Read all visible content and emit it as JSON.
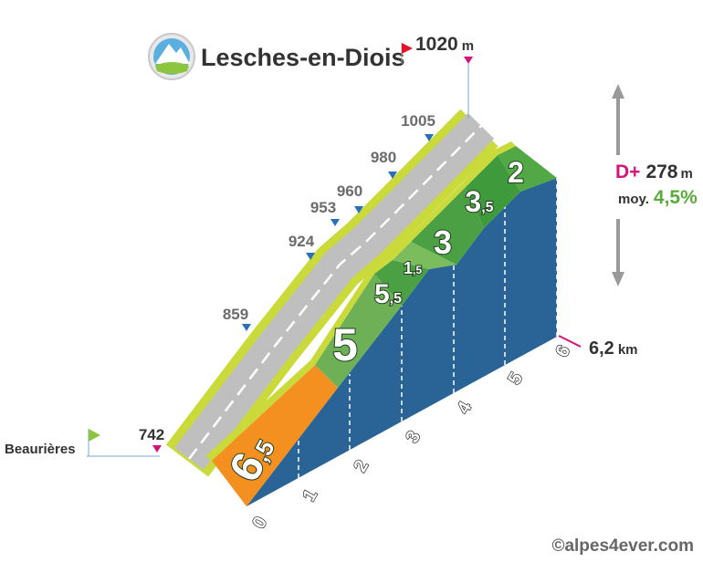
{
  "title": "Lesches-en-Diois",
  "summit": {
    "altitude": "1020",
    "unit": "m"
  },
  "start": {
    "name": "Beaurières",
    "altitude": "742"
  },
  "altitudes": [
    "859",
    "924",
    "953",
    "960",
    "980",
    "1005"
  ],
  "gradients": [
    {
      "main": "6",
      "sub": ",5"
    },
    {
      "main": "5"
    },
    {
      "main": "5",
      "sub": ",5"
    },
    {
      "main": "1",
      "sub": ",5"
    },
    {
      "main": "3"
    },
    {
      "main": "3",
      "sub": ",5"
    },
    {
      "main": "2"
    }
  ],
  "km_ticks": [
    "0",
    "1",
    "2",
    "3",
    "4",
    "5",
    "6"
  ],
  "distance": {
    "value": "6,2",
    "unit": "km"
  },
  "gain": {
    "label": "D+",
    "value": "278",
    "unit": "m"
  },
  "average": {
    "label": "moy.",
    "value": "4,5%"
  },
  "copyright": "©alpes4ever.com"
}
